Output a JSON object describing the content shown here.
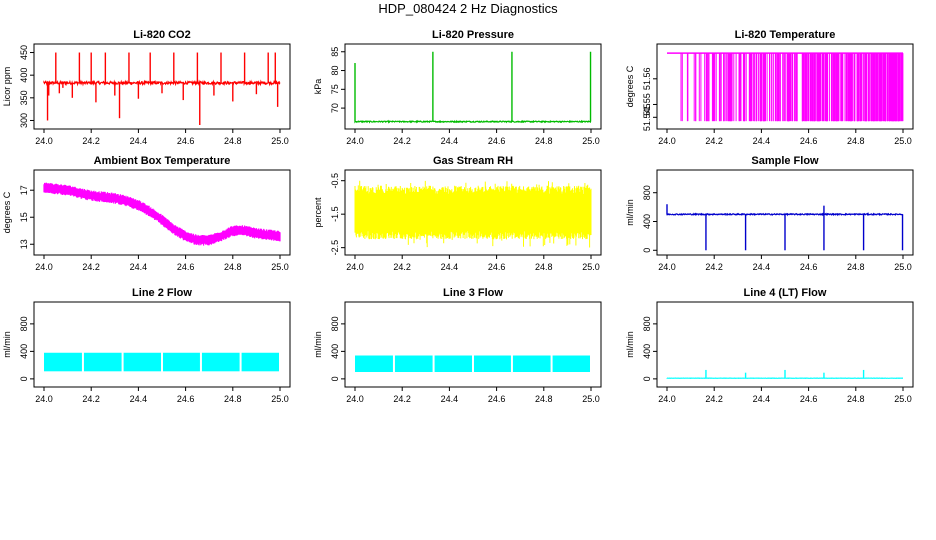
{
  "main_title": "HDP_080424  2 Hz Diagnostics",
  "chart_data": [
    {
      "type": "line",
      "title": "Li-820 CO2",
      "ylabel": "Licor ppm",
      "color": "#ff0000",
      "xlim": [
        24.0,
        25.0
      ],
      "ylim": [
        290,
        460
      ],
      "yticks": [
        300,
        350,
        400,
        450
      ],
      "xticks": [
        "24.0",
        "24.2",
        "24.4",
        "24.6",
        "24.8",
        "25.0"
      ],
      "series": [
        {
          "style": "spiky",
          "base": 383,
          "noise": 3,
          "spikes": [
            [
              24.015,
              300
            ],
            [
              24.02,
              355
            ],
            [
              24.05,
              450
            ],
            [
              24.065,
              360
            ],
            [
              24.08,
              372
            ],
            [
              24.12,
              350
            ],
            [
              24.15,
              450
            ],
            [
              24.2,
              450
            ],
            [
              24.22,
              340
            ],
            [
              24.26,
              450
            ],
            [
              24.3,
              355
            ],
            [
              24.32,
              305
            ],
            [
              24.36,
              450
            ],
            [
              24.4,
              348
            ],
            [
              24.45,
              450
            ],
            [
              24.5,
              360
            ],
            [
              24.55,
              450
            ],
            [
              24.59,
              345
            ],
            [
              24.65,
              450
            ],
            [
              24.66,
              290
            ],
            [
              24.72,
              355
            ],
            [
              24.75,
              450
            ],
            [
              24.8,
              342
            ],
            [
              24.85,
              450
            ],
            [
              24.9,
              358
            ],
            [
              24.95,
              450
            ],
            [
              24.99,
              330
            ],
            [
              24.98,
              450
            ]
          ]
        }
      ]
    },
    {
      "type": "line",
      "title": "Li-820 Pressure",
      "ylabel": "kPa",
      "color": "#00bb00",
      "xlim": [
        24.0,
        25.0
      ],
      "ylim": [
        65.5,
        86
      ],
      "yticks": [
        70,
        75,
        80,
        85
      ],
      "xticks": [
        "24.0",
        "24.2",
        "24.4",
        "24.6",
        "24.8",
        "25.0"
      ],
      "series": [
        {
          "style": "spiky",
          "base": 66.4,
          "noise": 0.15,
          "spikes": [
            [
              24.0,
              82
            ],
            [
              24.33,
              85
            ],
            [
              24.665,
              85
            ],
            [
              24.998,
              85
            ]
          ]
        }
      ]
    },
    {
      "type": "line",
      "title": "Li-820 Temperature",
      "ylabel": "degrees C",
      "color": "#ff00ff",
      "xlim": [
        24.0,
        25.0
      ],
      "ylim": [
        51.542,
        51.572
      ],
      "yticks": [
        51.545,
        51.55,
        51.56
      ],
      "xticks": [
        "24.0",
        "24.2",
        "24.4",
        "24.6",
        "24.8",
        "25.0"
      ],
      "series": [
        {
          "style": "dropouts",
          "base": 51.57,
          "low": 51.5435
        }
      ]
    },
    {
      "type": "line",
      "title": "Ambient Box Temperature",
      "ylabel": "degrees C",
      "color": "#ff00ff",
      "xlim": [
        24.0,
        25.0
      ],
      "ylim": [
        12.5,
        18.2
      ],
      "yticks": [
        13,
        15,
        17
      ],
      "xticks": [
        "24.0",
        "24.2",
        "24.4",
        "24.6",
        "24.8",
        "25.0"
      ],
      "series": [
        {
          "style": "band",
          "x": [
            24.0,
            24.05,
            24.1,
            24.15,
            24.2,
            24.25,
            24.3,
            24.35,
            24.4,
            24.45,
            24.5,
            24.55,
            24.6,
            24.65,
            24.7,
            24.75,
            24.8,
            24.85,
            24.9,
            24.95,
            25.0
          ],
          "y": [
            17.2,
            17.1,
            17.0,
            16.8,
            16.6,
            16.5,
            16.4,
            16.2,
            15.9,
            15.4,
            14.8,
            14.1,
            13.6,
            13.3,
            13.3,
            13.6,
            14.0,
            14.0,
            13.8,
            13.7,
            13.6
          ],
          "half_width": 0.4
        }
      ]
    },
    {
      "type": "line",
      "title": "Gas Stream RH",
      "ylabel": "percent",
      "color": "#ffff00",
      "xlim": [
        24.0,
        25.0
      ],
      "ylim": [
        -2.6,
        -0.3
      ],
      "yticks": [
        -2.5,
        -1.5,
        -0.5
      ],
      "xticks": [
        "24.0",
        "24.2",
        "24.4",
        "24.6",
        "24.8",
        "25.0"
      ],
      "series": [
        {
          "style": "noise",
          "lo": -2.0,
          "hi": -0.9,
          "outer_lo": -2.5,
          "outer_hi": -0.5
        }
      ]
    },
    {
      "type": "line",
      "title": "Sample Flow",
      "ylabel": "ml/min",
      "color": "#0000cc",
      "xlim": [
        24.0,
        25.0
      ],
      "ylim": [
        -10,
        1060
      ],
      "yticks": [
        0,
        400,
        800
      ],
      "xticks": [
        "24.0",
        "24.2",
        "24.4",
        "24.6",
        "24.8",
        "25.0"
      ],
      "series": [
        {
          "style": "spiky",
          "base": 500,
          "noise": 8,
          "spikes": [
            [
              24.0,
              640
            ],
            [
              24.165,
              0
            ],
            [
              24.333,
              0
            ],
            [
              24.5,
              0
            ],
            [
              24.665,
              0
            ],
            [
              24.665,
              620
            ],
            [
              24.833,
              0
            ],
            [
              24.998,
              0
            ]
          ]
        }
      ]
    },
    {
      "type": "line",
      "title": "Line 2 Flow",
      "ylabel": "ml/min",
      "color": "#00ffff",
      "xlim": [
        24.0,
        25.0
      ],
      "ylim": [
        -60,
        1060
      ],
      "yticks": [
        0,
        400,
        800
      ],
      "xticks": [
        "24.0",
        "24.2",
        "24.4",
        "24.6",
        "24.8",
        "25.0"
      ],
      "series": [
        {
          "style": "block",
          "lo": 110,
          "hi": 380,
          "gaps": [
            24.165,
            24.333,
            24.5,
            24.665,
            24.833
          ]
        }
      ]
    },
    {
      "type": "line",
      "title": "Line 3 Flow",
      "ylabel": "ml/min",
      "color": "#00ffff",
      "xlim": [
        24.0,
        25.0
      ],
      "ylim": [
        -60,
        1060
      ],
      "yticks": [
        0,
        400,
        800
      ],
      "xticks": [
        "24.0",
        "24.2",
        "24.4",
        "24.6",
        "24.8",
        "25.0"
      ],
      "series": [
        {
          "style": "block",
          "lo": 100,
          "hi": 340,
          "gaps": [
            24.165,
            24.333,
            24.5,
            24.665,
            24.833
          ]
        }
      ]
    },
    {
      "type": "line",
      "title": "Line 4 (LT) Flow",
      "ylabel": "ml/min",
      "color": "#00ffff",
      "xlim": [
        24.0,
        25.0
      ],
      "ylim": [
        -60,
        1060
      ],
      "yticks": [
        0,
        400,
        800
      ],
      "xticks": [
        "24.0",
        "24.2",
        "24.4",
        "24.6",
        "24.8",
        "25.0"
      ],
      "series": [
        {
          "style": "spiky",
          "base": 10,
          "noise": 2,
          "spikes": [
            [
              24.165,
              130
            ],
            [
              24.333,
              90
            ],
            [
              24.5,
              130
            ],
            [
              24.665,
              90
            ],
            [
              24.833,
              130
            ]
          ]
        }
      ]
    }
  ]
}
